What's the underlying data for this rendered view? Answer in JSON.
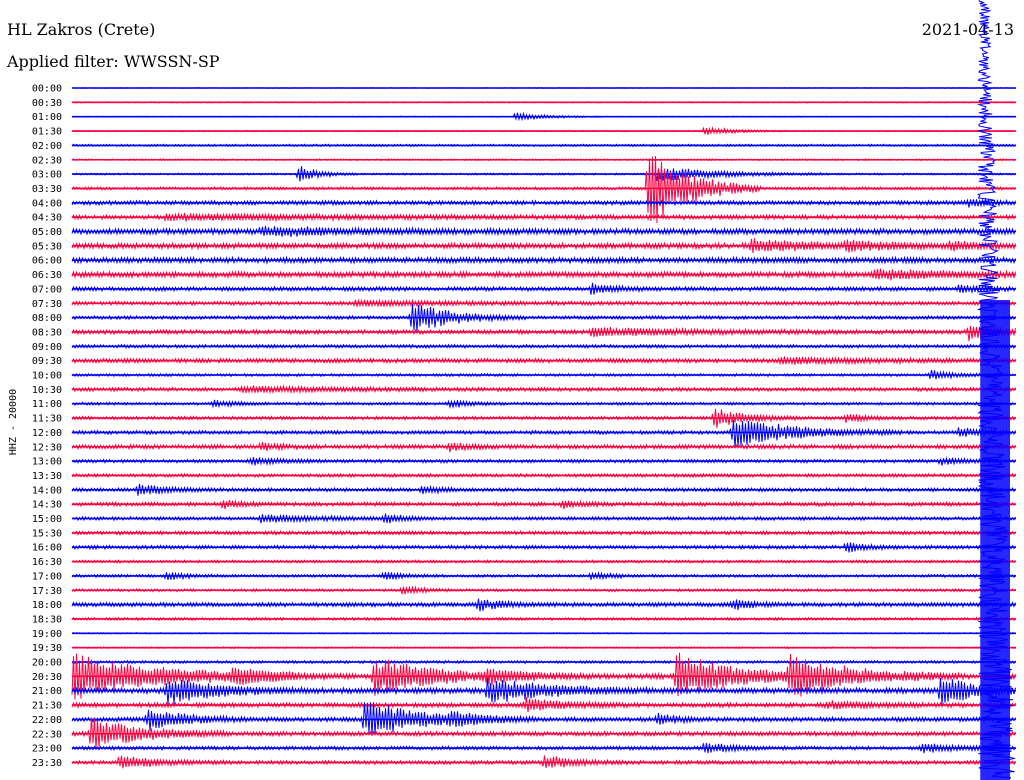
{
  "header": {
    "station": "HL Zakros (Crete)",
    "date": "2021-04-13",
    "filter": "Applied filter: WWSSN-SP"
  },
  "chart_data": {
    "type": "line",
    "title": "HL Zakros (Crete)",
    "ylabel": "HHZ - 20000",
    "colors": {
      "even": "#0000ff",
      "odd": "#ff0040"
    },
    "rows": [
      {
        "label": "00:00",
        "noise": 0.3,
        "events": []
      },
      {
        "label": "00:30",
        "noise": 0.5,
        "events": []
      },
      {
        "label": "01:00",
        "noise": 0.4,
        "events": [
          [
            0.47,
            3,
            0.03
          ]
        ]
      },
      {
        "label": "01:30",
        "noise": 0.5,
        "events": [
          [
            0.67,
            3,
            0.03
          ]
        ]
      },
      {
        "label": "02:00",
        "noise": 0.8,
        "events": []
      },
      {
        "label": "02:30",
        "noise": 0.6,
        "events": []
      },
      {
        "label": "03:00",
        "noise": 0.7,
        "events": [
          [
            0.24,
            7,
            0.02
          ],
          [
            0.62,
            6,
            0.06
          ]
        ]
      },
      {
        "label": "03:30",
        "noise": 1.0,
        "events": [
          [
            0.61,
            35,
            0.04
          ]
        ]
      },
      {
        "label": "04:00",
        "noise": 1.5,
        "events": [
          [
            0.95,
            3,
            0.02
          ]
        ]
      },
      {
        "label": "04:30",
        "noise": 1.5,
        "events": [
          [
            0.1,
            2,
            0.2
          ]
        ]
      },
      {
        "label": "05:00",
        "noise": 2.0,
        "events": [
          [
            0.2,
            3,
            0.1
          ]
        ]
      },
      {
        "label": "05:30",
        "noise": 2.0,
        "events": [
          [
            0.72,
            5,
            0.06
          ],
          [
            0.82,
            3,
            0.04
          ],
          [
            0.93,
            3,
            0.03
          ]
        ]
      },
      {
        "label": "06:00",
        "noise": 2.0,
        "events": []
      },
      {
        "label": "06:30",
        "noise": 2.0,
        "events": [
          [
            0.85,
            3,
            0.1
          ]
        ]
      },
      {
        "label": "07:00",
        "noise": 1.5,
        "events": [
          [
            0.55,
            4,
            0.02
          ],
          [
            0.94,
            3,
            0.02
          ]
        ]
      },
      {
        "label": "07:30",
        "noise": 1.3,
        "events": [
          [
            0.3,
            2,
            0.1
          ]
        ]
      },
      {
        "label": "08:00",
        "noise": 1.2,
        "events": [
          [
            0.36,
            12,
            0.04
          ]
        ]
      },
      {
        "label": "08:30",
        "noise": 1.5,
        "events": [
          [
            0.55,
            3,
            0.1
          ],
          [
            0.95,
            6,
            0.04
          ]
        ]
      },
      {
        "label": "09:00",
        "noise": 1.2,
        "events": []
      },
      {
        "label": "09:30",
        "noise": 1.5,
        "events": [
          [
            0.75,
            2,
            0.1
          ]
        ]
      },
      {
        "label": "10:00",
        "noise": 1.0,
        "events": [
          [
            0.91,
            4,
            0.02
          ]
        ]
      },
      {
        "label": "10:30",
        "noise": 1.3,
        "events": [
          [
            0.18,
            2,
            0.1
          ]
        ]
      },
      {
        "label": "11:00",
        "noise": 1.0,
        "events": [
          [
            0.15,
            3,
            0.02
          ],
          [
            0.4,
            3,
            0.02
          ]
        ]
      },
      {
        "label": "11:30",
        "noise": 1.2,
        "events": [
          [
            0.68,
            8,
            0.03
          ],
          [
            0.82,
            3,
            0.02
          ]
        ]
      },
      {
        "label": "12:00",
        "noise": 1.3,
        "events": [
          [
            0.7,
            12,
            0.06
          ],
          [
            0.94,
            4,
            0.02
          ]
        ]
      },
      {
        "label": "12:30",
        "noise": 1.5,
        "events": [
          [
            0.2,
            3,
            0.02
          ],
          [
            0.4,
            3,
            0.02
          ]
        ]
      },
      {
        "label": "13:00",
        "noise": 1.2,
        "events": [
          [
            0.19,
            3,
            0.03
          ],
          [
            0.92,
            3,
            0.02
          ]
        ]
      },
      {
        "label": "13:30",
        "noise": 1.2,
        "events": []
      },
      {
        "label": "14:00",
        "noise": 1.3,
        "events": [
          [
            0.07,
            4,
            0.03
          ],
          [
            0.37,
            3,
            0.02
          ]
        ]
      },
      {
        "label": "14:30",
        "noise": 1.4,
        "events": [
          [
            0.16,
            3,
            0.02
          ],
          [
            0.52,
            3,
            0.02
          ]
        ]
      },
      {
        "label": "15:00",
        "noise": 1.2,
        "events": [
          [
            0.2,
            3,
            0.06
          ],
          [
            0.33,
            3,
            0.02
          ]
        ]
      },
      {
        "label": "15:30",
        "noise": 1.3,
        "events": []
      },
      {
        "label": "16:00",
        "noise": 1.3,
        "events": [
          [
            0.82,
            4,
            0.02
          ]
        ]
      },
      {
        "label": "16:30",
        "noise": 1.0,
        "events": []
      },
      {
        "label": "17:00",
        "noise": 1.0,
        "events": [
          [
            0.1,
            3,
            0.02
          ],
          [
            0.33,
            3,
            0.02
          ],
          [
            0.55,
            3,
            0.02
          ]
        ]
      },
      {
        "label": "17:30",
        "noise": 1.0,
        "events": [
          [
            0.35,
            3,
            0.02
          ]
        ]
      },
      {
        "label": "18:00",
        "noise": 1.5,
        "events": [
          [
            0.43,
            4,
            0.03
          ],
          [
            0.7,
            4,
            0.02
          ]
        ]
      },
      {
        "label": "18:30",
        "noise": 1.0,
        "events": []
      },
      {
        "label": "19:00",
        "noise": 0.5,
        "events": []
      },
      {
        "label": "19:30",
        "noise": 0.6,
        "events": []
      },
      {
        "label": "20:00",
        "noise": 1.0,
        "events": []
      },
      {
        "label": "20:30",
        "noise": 2.0,
        "events": [
          [
            0.0,
            18,
            0.08
          ],
          [
            0.32,
            15,
            0.06
          ],
          [
            0.64,
            18,
            0.06
          ],
          [
            0.76,
            16,
            0.06
          ],
          [
            0.17,
            5,
            0.04
          ],
          [
            0.44,
            4,
            0.04
          ]
        ]
      },
      {
        "label": "21:00",
        "noise": 2.0,
        "events": [
          [
            0.1,
            10,
            0.05
          ],
          [
            0.44,
            10,
            0.06
          ],
          [
            0.92,
            10,
            0.04
          ]
        ]
      },
      {
        "label": "21:30",
        "noise": 1.6,
        "events": [
          [
            0.48,
            5,
            0.04
          ],
          [
            0.8,
            3,
            0.04
          ]
        ]
      },
      {
        "label": "22:00",
        "noise": 1.6,
        "events": [
          [
            0.08,
            8,
            0.04
          ],
          [
            0.31,
            14,
            0.06
          ],
          [
            0.4,
            4,
            0.03
          ],
          [
            0.62,
            4,
            0.02
          ]
        ]
      },
      {
        "label": "22:30",
        "noise": 1.6,
        "events": [
          [
            0.02,
            12,
            0.05
          ]
        ]
      },
      {
        "label": "23:00",
        "noise": 1.3,
        "events": [
          [
            0.67,
            4,
            0.03
          ],
          [
            0.9,
            4,
            0.03
          ]
        ]
      },
      {
        "label": "23:30",
        "noise": 1.3,
        "events": [
          [
            0.05,
            5,
            0.04
          ],
          [
            0.5,
            5,
            0.03
          ]
        ]
      }
    ],
    "saturated": {
      "start": 0.96,
      "color": "#0000ff"
    }
  }
}
